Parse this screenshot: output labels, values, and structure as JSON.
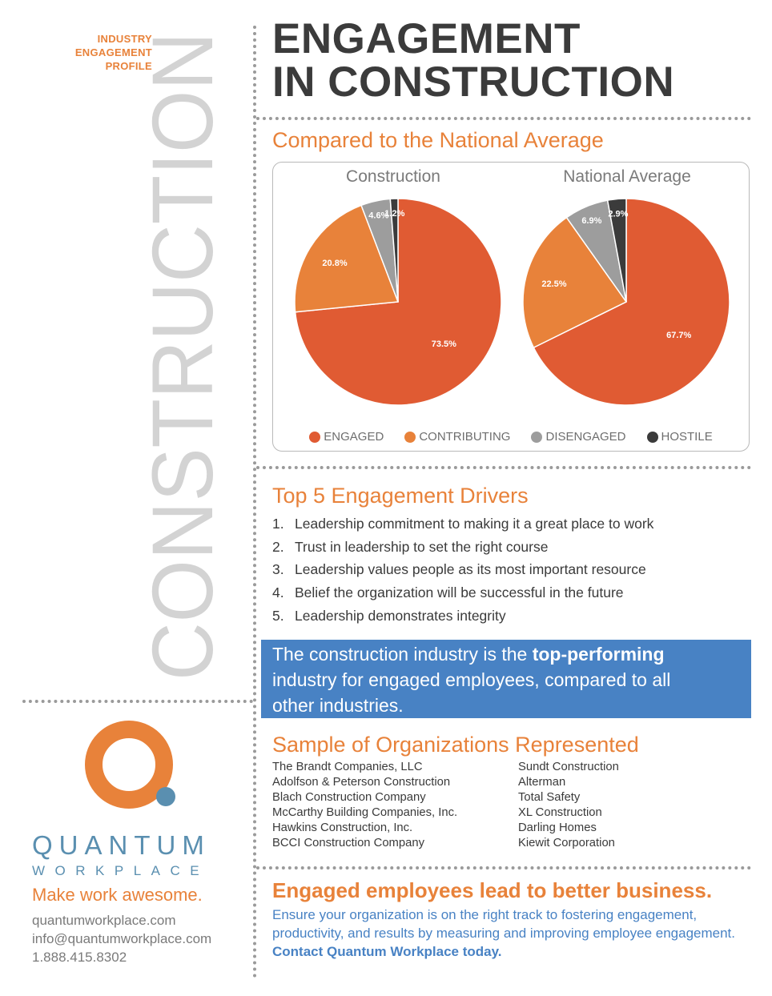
{
  "header": {
    "profile_line1": "INDUSTRY",
    "profile_line2": "ENGAGEMENT",
    "profile_line3": "PROFILE",
    "vertical_word": "CONSTRUCTION",
    "title_line1": "ENGAGEMENT",
    "title_line2": "IN CONSTRUCTION"
  },
  "comparison": {
    "heading": "Compared to the National Average"
  },
  "chart_data": [
    {
      "type": "pie",
      "title": "Construction",
      "categories": [
        "ENGAGED",
        "CONTRIBUTING",
        "DISENGAGED",
        "HOSTILE"
      ],
      "values": [
        73.5,
        20.8,
        4.6,
        1.2
      ],
      "labels": [
        "73.5%",
        "20.8%",
        "4.6%",
        "1.2%"
      ],
      "colors": [
        "#e05b33",
        "#e8823a",
        "#9d9d9d",
        "#3b3b3b"
      ],
      "legend": "bottom"
    },
    {
      "type": "pie",
      "title": "National Average",
      "categories": [
        "ENGAGED",
        "CONTRIBUTING",
        "DISENGAGED",
        "HOSTILE"
      ],
      "values": [
        67.7,
        22.5,
        6.9,
        2.9
      ],
      "labels": [
        "67.7%",
        "22.5%",
        "6.9%",
        "2.9%"
      ],
      "colors": [
        "#e05b33",
        "#e8823a",
        "#9d9d9d",
        "#3b3b3b"
      ],
      "legend": "bottom"
    }
  ],
  "legend": [
    {
      "label": "ENGAGED",
      "color": "#e05b33"
    },
    {
      "label": "CONTRIBUTING",
      "color": "#e8823a"
    },
    {
      "label": "DISENGAGED",
      "color": "#9d9d9d"
    },
    {
      "label": "HOSTILE",
      "color": "#3b3b3b"
    }
  ],
  "drivers": {
    "heading": "Top 5 Engagement Drivers",
    "items": [
      {
        "num": "1.",
        "text": "Leadership commitment to making it a great place to work"
      },
      {
        "num": "2.",
        "text": "Trust in leadership to set the right course"
      },
      {
        "num": "3.",
        "text": "Leadership values people as its most important resource"
      },
      {
        "num": "4.",
        "text": "Belief the organization will be successful in the future"
      },
      {
        "num": "5.",
        "text": "Leadership demonstrates integrity"
      }
    ]
  },
  "callout": {
    "text_before": "The construction industry is the ",
    "text_bold": "top-performing",
    "text_after": " industry for engaged employees, compared to all other industries."
  },
  "organizations": {
    "heading": "Sample of Organizations Represented",
    "left": [
      "The Brandt Companies, LLC",
      "Adolfson & Peterson Construction",
      "Blach Construction Company",
      "McCarthy Building Companies, Inc.",
      "Hawkins Construction, Inc.",
      "BCCI Construction Company"
    ],
    "right": [
      "Sundt Construction",
      "Alterman",
      "Total Safety",
      "XL Construction",
      "Darling Homes",
      "Kiewit Corporation"
    ]
  },
  "brand": {
    "name_line1": "QUANTUM",
    "name_line2": "WORKPLACE",
    "logo_color": "#e8823a",
    "dot_color": "#5a8fb0",
    "tagline": "Make work awesome.",
    "website": "quantumworkplace.com",
    "email": "info@quantumworkplace.com",
    "phone": "1.888.415.8302"
  },
  "cta": {
    "heading": "Engaged employees lead to better business.",
    "body": "Ensure your organization is on the right track to fostering engagement, productivity, and results by measuring and improving employee engagement. ",
    "body_bold": "Contact Quantum Workplace today."
  }
}
